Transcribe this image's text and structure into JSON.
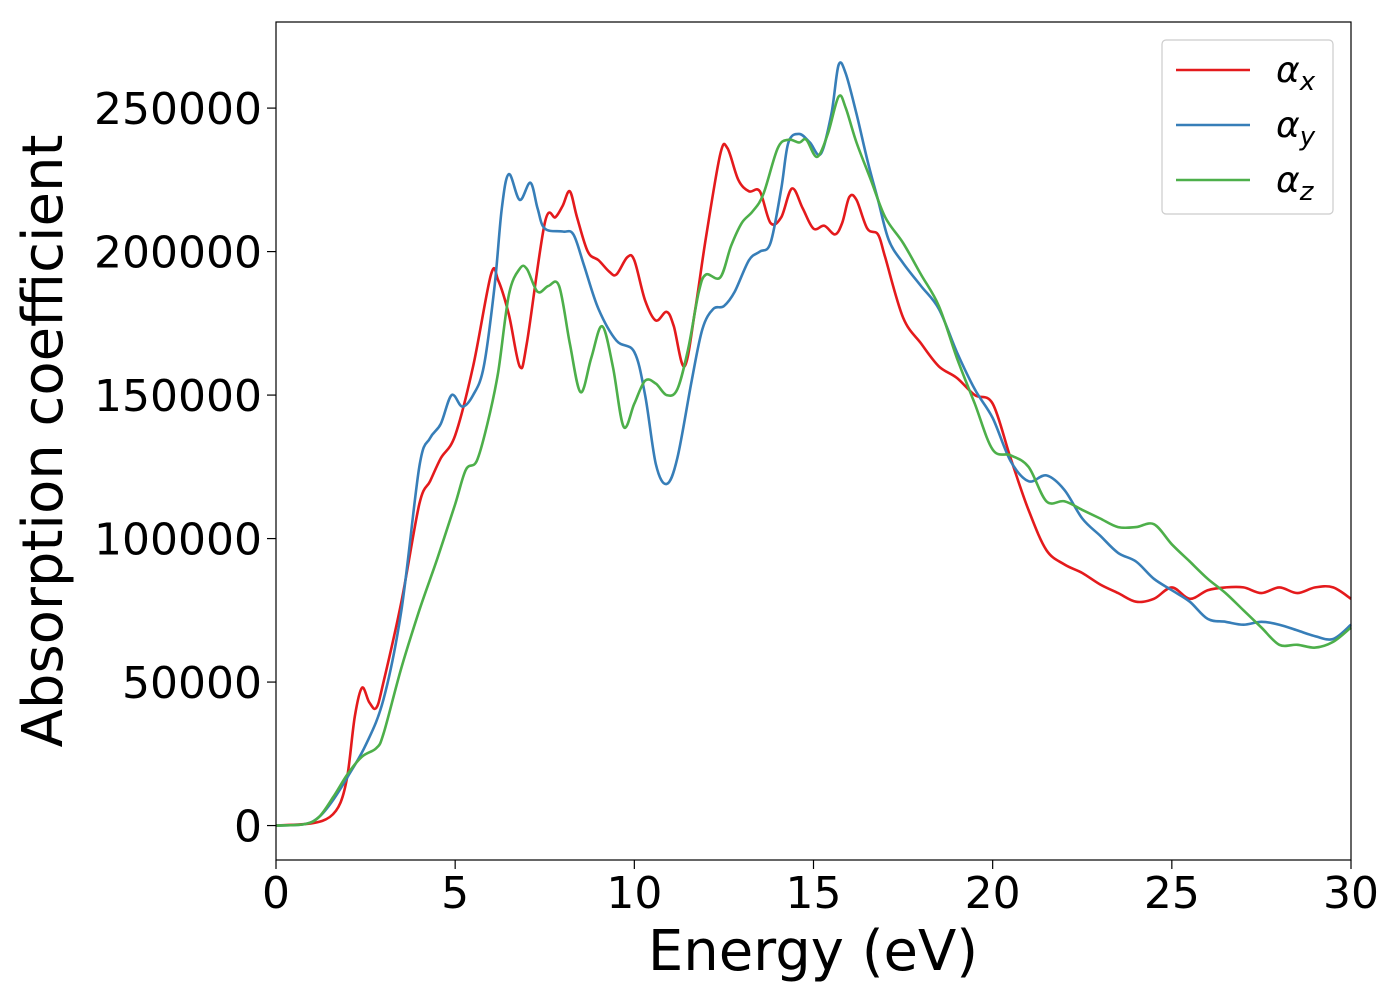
{
  "chart_data": {
    "type": "line",
    "title": "",
    "xlabel": "Energy (eV)",
    "ylabel": "Absorption coefficient",
    "xlim": [
      0,
      30
    ],
    "ylim": [
      -12000,
      280000
    ],
    "xticks": [
      0,
      5,
      10,
      15,
      20,
      25,
      30
    ],
    "xtick_labels": [
      "0",
      "5",
      "10",
      "15",
      "20",
      "25",
      "30"
    ],
    "yticks": [
      0,
      50000,
      100000,
      150000,
      200000,
      250000
    ],
    "ytick_labels": [
      "0",
      "50000",
      "100000",
      "150000",
      "200000",
      "250000"
    ],
    "grid": false,
    "legend_position": "top-right",
    "series": [
      {
        "name": "αx",
        "legend_base": "α",
        "legend_sub": "x",
        "color": "#e41a1c",
        "points": [
          [
            0,
            0
          ],
          [
            1,
            800
          ],
          [
            1.5,
            3000
          ],
          [
            1.8,
            8000
          ],
          [
            2,
            18000
          ],
          [
            2.2,
            38000
          ],
          [
            2.4,
            48000
          ],
          [
            2.6,
            43000
          ],
          [
            2.8,
            41000
          ],
          [
            3,
            50000
          ],
          [
            3.5,
            78000
          ],
          [
            4,
            112000
          ],
          [
            4.3,
            120000
          ],
          [
            4.6,
            128000
          ],
          [
            5,
            136000
          ],
          [
            5.5,
            160000
          ],
          [
            6,
            192000
          ],
          [
            6.2,
            190000
          ],
          [
            6.5,
            178000
          ],
          [
            6.8,
            160000
          ],
          [
            7,
            168000
          ],
          [
            7.5,
            210000
          ],
          [
            7.8,
            212000
          ],
          [
            8,
            216000
          ],
          [
            8.2,
            221000
          ],
          [
            8.4,
            212000
          ],
          [
            8.7,
            200000
          ],
          [
            9,
            197000
          ],
          [
            9.3,
            193000
          ],
          [
            9.5,
            192000
          ],
          [
            9.8,
            198000
          ],
          [
            10,
            197000
          ],
          [
            10.3,
            183000
          ],
          [
            10.6,
            176000
          ],
          [
            10.9,
            179000
          ],
          [
            11.1,
            174000
          ],
          [
            11.4,
            160000
          ],
          [
            11.7,
            180000
          ],
          [
            12,
            205000
          ],
          [
            12.4,
            234000
          ],
          [
            12.6,
            236000
          ],
          [
            12.9,
            225000
          ],
          [
            13.2,
            221000
          ],
          [
            13.5,
            221000
          ],
          [
            13.8,
            210000
          ],
          [
            14.1,
            212000
          ],
          [
            14.4,
            222000
          ],
          [
            14.7,
            215000
          ],
          [
            15,
            208000
          ],
          [
            15.3,
            209000
          ],
          [
            15.6,
            206000
          ],
          [
            15.8,
            210000
          ],
          [
            16,
            219000
          ],
          [
            16.2,
            218000
          ],
          [
            16.5,
            208000
          ],
          [
            16.8,
            206000
          ],
          [
            17,
            198000
          ],
          [
            17.5,
            177000
          ],
          [
            18,
            168000
          ],
          [
            18.5,
            160000
          ],
          [
            19,
            156000
          ],
          [
            19.5,
            150000
          ],
          [
            20,
            147000
          ],
          [
            20.5,
            128000
          ],
          [
            21,
            110000
          ],
          [
            21.5,
            96000
          ],
          [
            22,
            91000
          ],
          [
            22.5,
            88000
          ],
          [
            23,
            84000
          ],
          [
            23.5,
            81000
          ],
          [
            24,
            78000
          ],
          [
            24.5,
            79000
          ],
          [
            25,
            83000
          ],
          [
            25.5,
            79000
          ],
          [
            26,
            82000
          ],
          [
            26.5,
            83000
          ],
          [
            27,
            83000
          ],
          [
            27.5,
            81000
          ],
          [
            28,
            83000
          ],
          [
            28.5,
            81000
          ],
          [
            29,
            83000
          ],
          [
            29.5,
            83000
          ],
          [
            30,
            79000
          ]
        ]
      },
      {
        "name": "αy",
        "legend_base": "α",
        "legend_sub": "y",
        "color": "#377eb8",
        "points": [
          [
            0,
            0
          ],
          [
            0.8,
            500
          ],
          [
            1.2,
            3000
          ],
          [
            1.6,
            9000
          ],
          [
            2,
            17000
          ],
          [
            2.5,
            28000
          ],
          [
            3,
            44000
          ],
          [
            3.5,
            75000
          ],
          [
            4,
            125000
          ],
          [
            4.3,
            135000
          ],
          [
            4.6,
            140000
          ],
          [
            4.9,
            150000
          ],
          [
            5.2,
            146000
          ],
          [
            5.5,
            150000
          ],
          [
            5.8,
            160000
          ],
          [
            6.1,
            188000
          ],
          [
            6.3,
            215000
          ],
          [
            6.5,
            227000
          ],
          [
            6.8,
            218000
          ],
          [
            7.1,
            224000
          ],
          [
            7.3,
            215000
          ],
          [
            7.5,
            208000
          ],
          [
            8,
            207000
          ],
          [
            8.3,
            206000
          ],
          [
            8.6,
            195000
          ],
          [
            9,
            180000
          ],
          [
            9.5,
            169000
          ],
          [
            10,
            165000
          ],
          [
            10.3,
            150000
          ],
          [
            10.6,
            126000
          ],
          [
            10.9,
            119000
          ],
          [
            11.2,
            128000
          ],
          [
            11.6,
            155000
          ],
          [
            11.9,
            173000
          ],
          [
            12.2,
            180000
          ],
          [
            12.5,
            181000
          ],
          [
            12.8,
            186000
          ],
          [
            13.2,
            197000
          ],
          [
            13.5,
            200000
          ],
          [
            13.8,
            203000
          ],
          [
            14.1,
            222000
          ],
          [
            14.3,
            238000
          ],
          [
            14.6,
            241000
          ],
          [
            14.9,
            238000
          ],
          [
            15.2,
            234000
          ],
          [
            15.5,
            248000
          ],
          [
            15.7,
            265000
          ],
          [
            15.9,
            262000
          ],
          [
            16.2,
            248000
          ],
          [
            16.5,
            232000
          ],
          [
            16.8,
            218000
          ],
          [
            17.1,
            204000
          ],
          [
            17.5,
            196000
          ],
          [
            18,
            188000
          ],
          [
            18.5,
            180000
          ],
          [
            19,
            165000
          ],
          [
            19.5,
            152000
          ],
          [
            20,
            142000
          ],
          [
            20.5,
            127000
          ],
          [
            21,
            120000
          ],
          [
            21.5,
            122000
          ],
          [
            22,
            117000
          ],
          [
            22.5,
            107000
          ],
          [
            23,
            101000
          ],
          [
            23.5,
            95000
          ],
          [
            24,
            92000
          ],
          [
            24.5,
            86000
          ],
          [
            25,
            82000
          ],
          [
            25.5,
            78000
          ],
          [
            26,
            72000
          ],
          [
            26.5,
            71000
          ],
          [
            27,
            70000
          ],
          [
            27.5,
            71000
          ],
          [
            28,
            70000
          ],
          [
            28.5,
            68000
          ],
          [
            29,
            66000
          ],
          [
            29.5,
            65000
          ],
          [
            30,
            70000
          ]
        ]
      },
      {
        "name": "αz",
        "legend_base": "α",
        "legend_sub": "z",
        "color": "#4daf4a",
        "points": [
          [
            0,
            0
          ],
          [
            0.8,
            500
          ],
          [
            1.2,
            3000
          ],
          [
            1.6,
            10000
          ],
          [
            2,
            18000
          ],
          [
            2.4,
            24000
          ],
          [
            2.8,
            27000
          ],
          [
            3,
            32000
          ],
          [
            3.5,
            55000
          ],
          [
            4,
            75000
          ],
          [
            4.5,
            93000
          ],
          [
            5,
            112000
          ],
          [
            5.3,
            124000
          ],
          [
            5.6,
            127000
          ],
          [
            5.9,
            140000
          ],
          [
            6.2,
            158000
          ],
          [
            6.5,
            185000
          ],
          [
            6.8,
            194000
          ],
          [
            7,
            194000
          ],
          [
            7.3,
            186000
          ],
          [
            7.6,
            188000
          ],
          [
            7.9,
            188000
          ],
          [
            8.2,
            168000
          ],
          [
            8.5,
            151000
          ],
          [
            8.8,
            163000
          ],
          [
            9.1,
            174000
          ],
          [
            9.4,
            160000
          ],
          [
            9.7,
            139000
          ],
          [
            10,
            147000
          ],
          [
            10.3,
            155000
          ],
          [
            10.6,
            154000
          ],
          [
            10.9,
            150000
          ],
          [
            11.2,
            152000
          ],
          [
            11.5,
            166000
          ],
          [
            11.8,
            186000
          ],
          [
            12,
            192000
          ],
          [
            12.4,
            191000
          ],
          [
            12.7,
            202000
          ],
          [
            13,
            210000
          ],
          [
            13.3,
            214000
          ],
          [
            13.6,
            220000
          ],
          [
            14,
            236000
          ],
          [
            14.3,
            239000
          ],
          [
            14.6,
            238000
          ],
          [
            14.8,
            239000
          ],
          [
            15.1,
            233000
          ],
          [
            15.4,
            241000
          ],
          [
            15.7,
            254000
          ],
          [
            15.9,
            250000
          ],
          [
            16.2,
            238000
          ],
          [
            16.6,
            225000
          ],
          [
            17,
            212000
          ],
          [
            17.5,
            203000
          ],
          [
            18,
            192000
          ],
          [
            18.5,
            181000
          ],
          [
            19,
            163000
          ],
          [
            19.5,
            147000
          ],
          [
            20,
            131000
          ],
          [
            20.5,
            129000
          ],
          [
            21,
            125000
          ],
          [
            21.5,
            113000
          ],
          [
            22,
            113000
          ],
          [
            22.5,
            110000
          ],
          [
            23,
            107000
          ],
          [
            23.5,
            104000
          ],
          [
            24,
            104000
          ],
          [
            24.5,
            105000
          ],
          [
            25,
            98000
          ],
          [
            25.5,
            92000
          ],
          [
            26,
            86000
          ],
          [
            26.5,
            81000
          ],
          [
            27,
            75000
          ],
          [
            27.5,
            69000
          ],
          [
            28,
            63000
          ],
          [
            28.5,
            63000
          ],
          [
            29,
            62000
          ],
          [
            29.5,
            64000
          ],
          [
            30,
            69000
          ]
        ]
      }
    ]
  }
}
